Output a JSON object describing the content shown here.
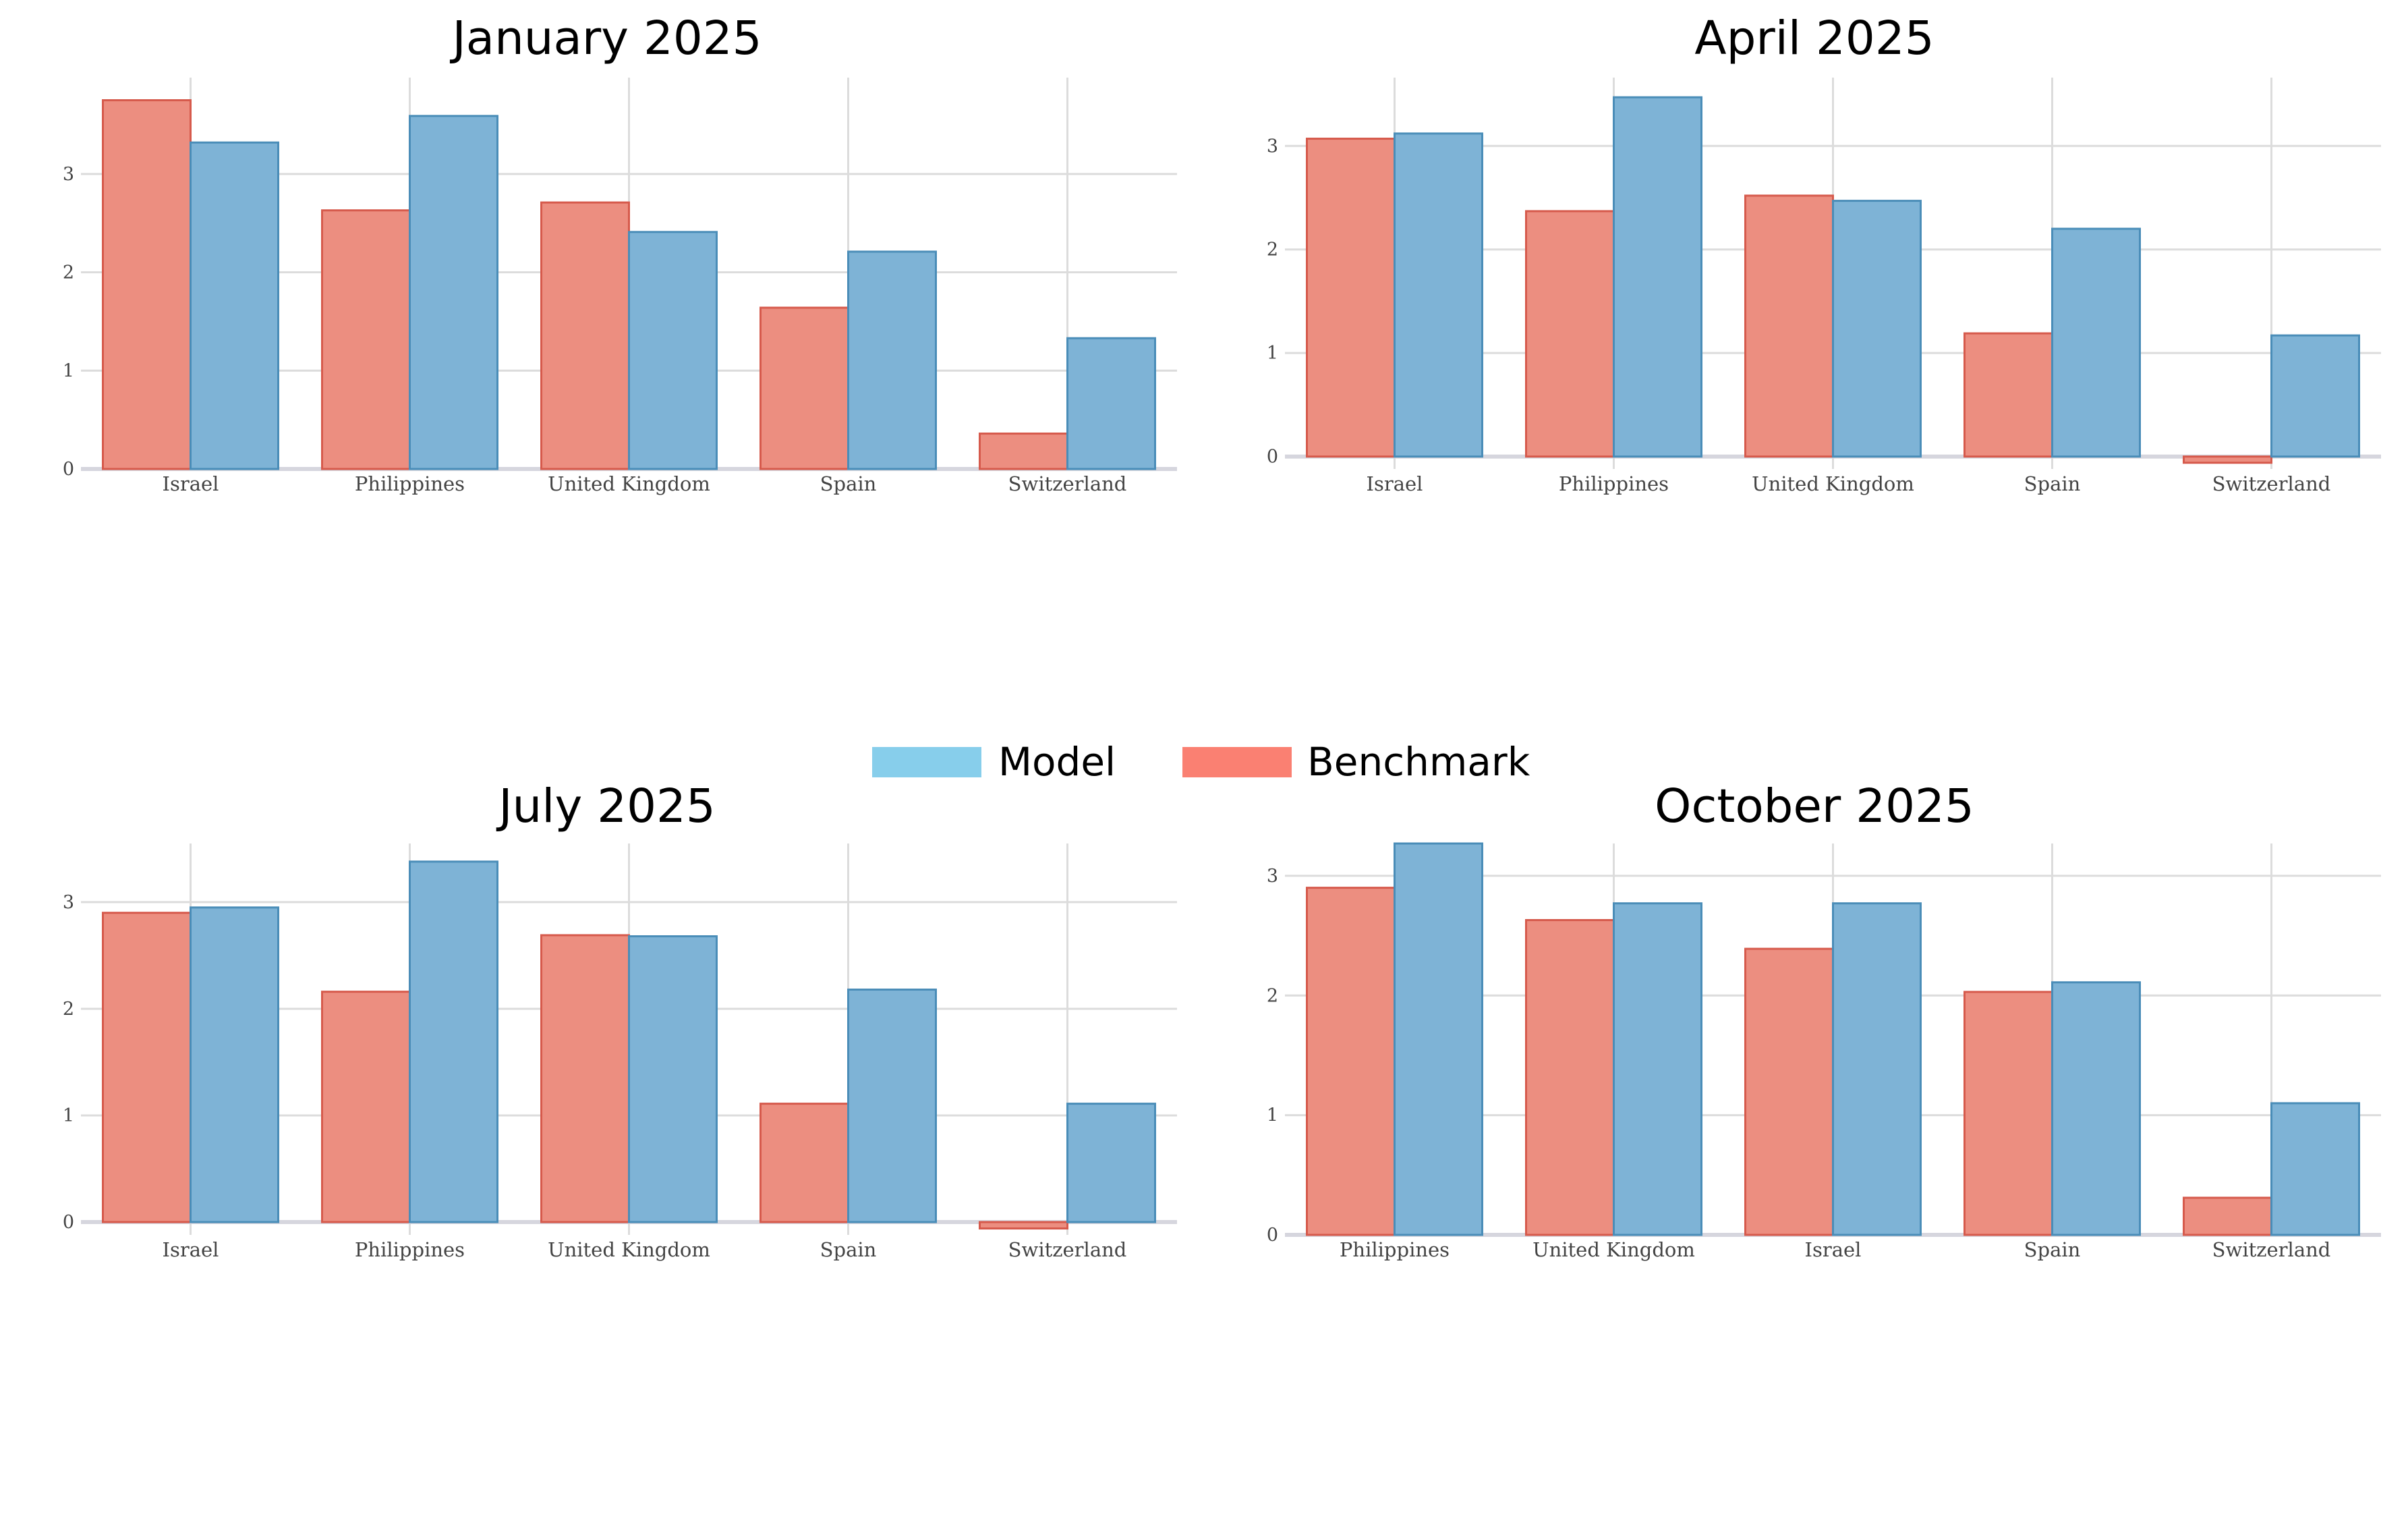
{
  "legend": {
    "items": [
      {
        "name": "Model",
        "color": "#87ceeb"
      },
      {
        "name": "Benchmark",
        "color": "#fa8072"
      }
    ]
  },
  "colors": {
    "model_bar": "#7eb3d6",
    "model_edge": "#4a8db8",
    "benchmark_bar": "#ec8e80",
    "benchmark_edge": "#d65a4c"
  },
  "chart_data": [
    {
      "type": "bar",
      "title": "January 2025",
      "categories": [
        "Israel",
        "Philippines",
        "United Kingdom",
        "Spain",
        "Switzerland"
      ],
      "series": [
        {
          "name": "Benchmark",
          "values": [
            3.75,
            2.63,
            2.71,
            1.64,
            0.36
          ]
        },
        {
          "name": "Model",
          "values": [
            3.32,
            3.59,
            2.41,
            2.21,
            1.33
          ]
        }
      ],
      "yticks": [
        0,
        1,
        2,
        3
      ],
      "ylim": [
        0,
        3.98
      ],
      "grid": true
    },
    {
      "type": "bar",
      "title": "April 2025",
      "categories": [
        "Israel",
        "Philippines",
        "United Kingdom",
        "Spain",
        "Switzerland"
      ],
      "series": [
        {
          "name": "Benchmark",
          "values": [
            3.07,
            2.37,
            2.52,
            1.19,
            -0.06
          ]
        },
        {
          "name": "Model",
          "values": [
            3.12,
            3.47,
            2.47,
            2.2,
            1.17
          ]
        }
      ],
      "yticks": [
        0,
        1,
        2,
        3
      ],
      "ylim": [
        -0.12,
        3.66
      ],
      "grid": true
    },
    {
      "type": "bar",
      "title": "July 2025",
      "categories": [
        "Israel",
        "Philippines",
        "United Kingdom",
        "Spain",
        "Switzerland"
      ],
      "series": [
        {
          "name": "Benchmark",
          "values": [
            2.9,
            2.16,
            2.69,
            1.11,
            -0.06
          ]
        },
        {
          "name": "Model",
          "values": [
            2.95,
            3.38,
            2.68,
            2.18,
            1.11
          ]
        }
      ],
      "yticks": [
        0,
        1,
        2,
        3
      ],
      "ylim": [
        -0.12,
        3.55
      ],
      "grid": true
    },
    {
      "type": "bar",
      "title": "October 2025",
      "categories": [
        "Philippines",
        "United Kingdom",
        "Israel",
        "Spain",
        "Switzerland"
      ],
      "series": [
        {
          "name": "Benchmark",
          "values": [
            2.9,
            2.63,
            2.39,
            2.03,
            0.31
          ]
        },
        {
          "name": "Model",
          "values": [
            3.27,
            2.77,
            2.77,
            2.11,
            1.1
          ]
        }
      ],
      "yticks": [
        0,
        1,
        2,
        3
      ],
      "ylim": [
        0,
        3.27
      ],
      "grid": true
    }
  ]
}
